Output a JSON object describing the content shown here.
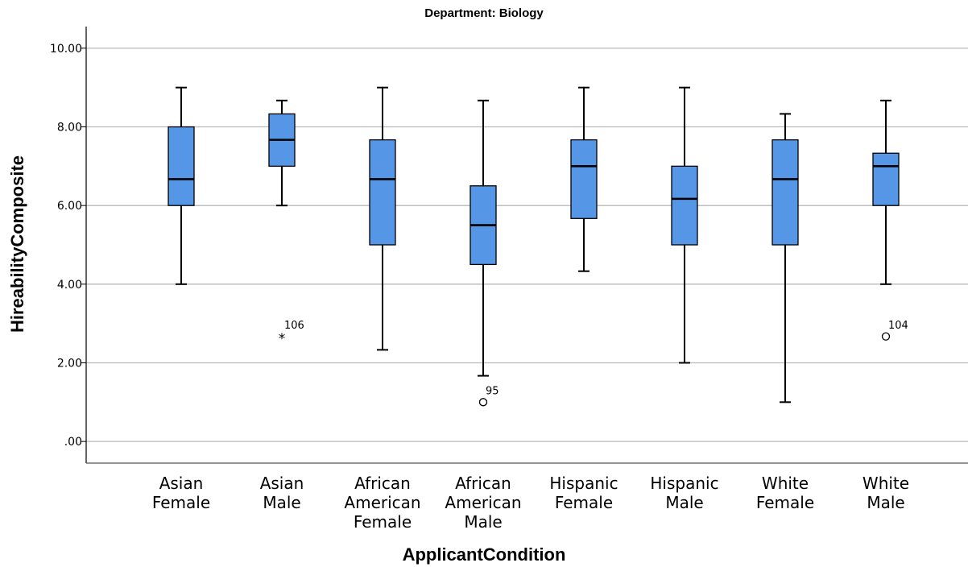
{
  "chart_data": {
    "type": "boxplot",
    "title": "Department: Biology",
    "xlabel": "ApplicantCondition",
    "ylabel": "HireabilityComposite",
    "ylim": [
      -0.55,
      10.55
    ],
    "yticks": [
      0,
      2,
      4,
      6,
      8,
      10
    ],
    "ytick_labels": [
      ".00",
      "2.00",
      "4.00",
      "6.00",
      "8.00",
      "10.00"
    ],
    "grid": true,
    "box_color": "#5596e6",
    "categories": [
      [
        "Asian",
        "Female"
      ],
      [
        "Asian",
        "Male"
      ],
      [
        "African",
        "American",
        "Female"
      ],
      [
        "African",
        "American",
        "Male"
      ],
      [
        "Hispanic",
        "Female"
      ],
      [
        "Hispanic",
        "Male"
      ],
      [
        "White",
        "Female"
      ],
      [
        "White",
        "Male"
      ]
    ],
    "boxes": [
      {
        "whisker_low": 4.0,
        "q1": 6.0,
        "median": 6.67,
        "q3": 8.0,
        "whisker_high": 9.0
      },
      {
        "whisker_low": 6.0,
        "q1": 7.0,
        "median": 7.67,
        "q3": 8.33,
        "whisker_high": 8.67
      },
      {
        "whisker_low": 2.33,
        "q1": 5.0,
        "median": 6.67,
        "q3": 7.67,
        "whisker_high": 9.0
      },
      {
        "whisker_low": 1.67,
        "q1": 4.5,
        "median": 5.5,
        "q3": 6.5,
        "whisker_high": 8.67
      },
      {
        "whisker_low": 4.33,
        "q1": 5.67,
        "median": 7.0,
        "q3": 7.67,
        "whisker_high": 9.0
      },
      {
        "whisker_low": 2.0,
        "q1": 5.0,
        "median": 6.17,
        "q3": 7.0,
        "whisker_high": 9.0
      },
      {
        "whisker_low": 1.0,
        "q1": 5.0,
        "median": 6.67,
        "q3": 7.67,
        "whisker_high": 8.33
      },
      {
        "whisker_low": 4.0,
        "q1": 6.0,
        "median": 7.0,
        "q3": 7.33,
        "whisker_high": 8.67
      }
    ],
    "outliers": [
      {
        "category_index": 1,
        "value": 2.67,
        "label": "106",
        "marker": "star"
      },
      {
        "category_index": 3,
        "value": 1.0,
        "label": "95",
        "marker": "circle"
      },
      {
        "category_index": 7,
        "value": 2.67,
        "label": "104",
        "marker": "circle"
      }
    ]
  }
}
